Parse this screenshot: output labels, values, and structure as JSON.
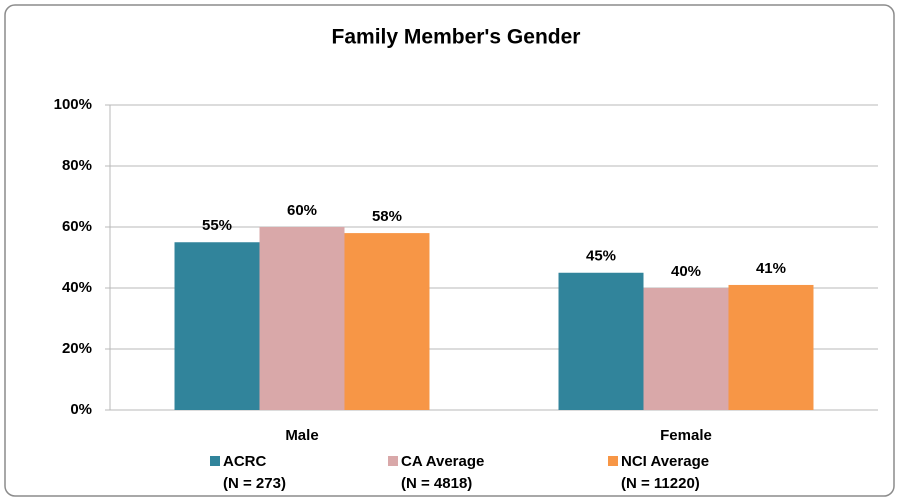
{
  "chart_data": {
    "type": "bar",
    "title": "Family Member's Gender",
    "categories": [
      "Male",
      "Female"
    ],
    "series": [
      {
        "name": "ACRC",
        "note": "(N = 273)",
        "color": "#31849b",
        "values": [
          55,
          45
        ],
        "value_labels": [
          "55%",
          "45%"
        ]
      },
      {
        "name": "CA Average",
        "note": "(N = 4818)",
        "color": "#d9a8a9",
        "values": [
          60,
          40
        ],
        "value_labels": [
          "60%",
          "40%"
        ]
      },
      {
        "name": "NCI Average",
        "note": "(N = 11220)",
        "color": "#f79646",
        "values": [
          58,
          41
        ],
        "value_labels": [
          "58%",
          "41%"
        ]
      }
    ],
    "ylim": [
      0,
      100
    ],
    "yticks": [
      {
        "value": 0,
        "label": "0%"
      },
      {
        "value": 20,
        "label": "20%"
      },
      {
        "value": 40,
        "label": "40%"
      },
      {
        "value": 60,
        "label": "60%"
      },
      {
        "value": 80,
        "label": "80%"
      },
      {
        "value": 100,
        "label": "100%"
      }
    ],
    "grid": true,
    "legend": "bottom"
  }
}
